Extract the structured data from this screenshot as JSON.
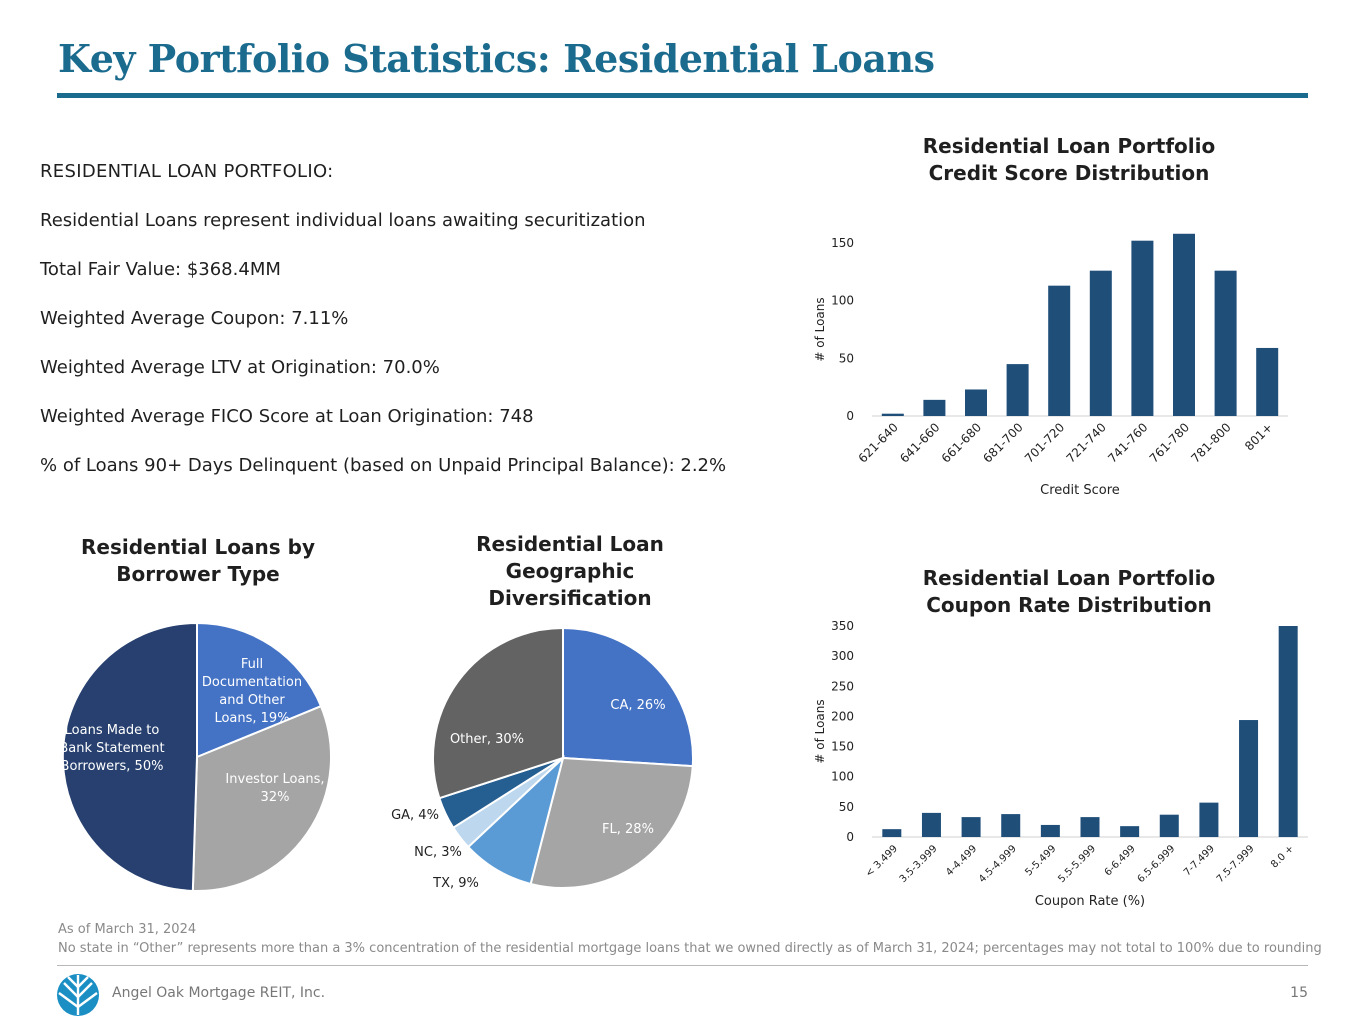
{
  "page": {
    "title": "Key Portfolio Statistics: Residential Loans",
    "page_number": "15",
    "company": "Angel Oak Mortgage REIT, Inc."
  },
  "portfolio": {
    "heading": "RESIDENTIAL LOAN PORTFOLIO:",
    "lines": [
      "Residential Loans represent individual loans awaiting securitization",
      "Total Fair Value: $368.4MM",
      "Weighted Average Coupon: 7.11%",
      "Weighted Average LTV at Origination: 70.0%",
      "Weighted Average FICO Score at Loan Origination: 748",
      "% of Loans 90+ Days Delinquent (based on Unpaid Principal Balance): 2.2%"
    ]
  },
  "footnotes": {
    "as_of": "As of March 31, 2024",
    "note": "No state in “Other” represents more than a 3% concentration of the residential mortgage loans that we owned directly as of March 31, 2024; percentages may not total to 100% due to rounding"
  },
  "colors": {
    "title": "#1b6b8f",
    "bar": "#1f4e79",
    "navy": "#27406f",
    "blue": "#4472c4",
    "gray": "#a5a5a5",
    "darkgray": "#636363",
    "lightblue": "#5b9bd5",
    "paleblue": "#bdd7ee",
    "midblue": "#255e91"
  },
  "chart_data": [
    {
      "id": "credit",
      "type": "bar",
      "title": "Residential Loan Portfolio\nCredit Score Distribution",
      "xlabel": "Credit Score",
      "ylabel": "# of Loans",
      "categories": [
        "621-640",
        "641-660",
        "661-680",
        "681-700",
        "701-720",
        "721-740",
        "741-760",
        "761-780",
        "781-800",
        "801+"
      ],
      "values": [
        2,
        14,
        23,
        45,
        113,
        126,
        152,
        158,
        126,
        59
      ],
      "ylim": [
        0,
        150
      ],
      "yticks": [
        0,
        50,
        100,
        150
      ],
      "grid": false
    },
    {
      "id": "coupon",
      "type": "bar",
      "title": "Residential Loan Portfolio\nCoupon Rate Distribution",
      "xlabel": "Coupon Rate (%)",
      "ylabel": "# of Loans",
      "categories": [
        "< 3.499",
        "3.5-3.999",
        "4-4.499",
        "4.5-4.999",
        "5-5.499",
        "5.5-5.999",
        "6-6.499",
        "6.5-6.999",
        "7-7.499",
        "7.5-7.999",
        "8.0 +"
      ],
      "values": [
        13,
        40,
        33,
        38,
        20,
        33,
        18,
        37,
        57,
        194,
        350
      ],
      "ylim": [
        0,
        350
      ],
      "yticks": [
        0,
        50,
        100,
        150,
        200,
        250,
        300,
        350
      ],
      "grid": false
    },
    {
      "id": "borrower",
      "type": "pie",
      "title": "Residential Loans by\nBorrower Type",
      "slices": [
        {
          "label": "Full Documentation and Other Loans, 19%",
          "value": 19,
          "color": "#4472c4"
        },
        {
          "label": "Investor Loans, 32%",
          "value": 32,
          "color": "#a5a5a5"
        },
        {
          "label": "Loans Made to Bank Statement Borrowers, 50%",
          "value": 50,
          "color": "#27406f"
        }
      ]
    },
    {
      "id": "geo",
      "type": "pie",
      "title": "Residential Loan\nGeographic\nDiversification",
      "slices": [
        {
          "label": "CA, 26%",
          "value": 26,
          "color": "#4472c4"
        },
        {
          "label": "FL, 28%",
          "value": 28,
          "color": "#a5a5a5"
        },
        {
          "label": "TX, 9%",
          "value": 9,
          "color": "#5b9bd5"
        },
        {
          "label": "NC, 3%",
          "value": 3,
          "color": "#bdd7ee"
        },
        {
          "label": "GA, 4%",
          "value": 4,
          "color": "#255e91"
        },
        {
          "label": "Other, 30%",
          "value": 30,
          "color": "#636363"
        }
      ]
    }
  ]
}
